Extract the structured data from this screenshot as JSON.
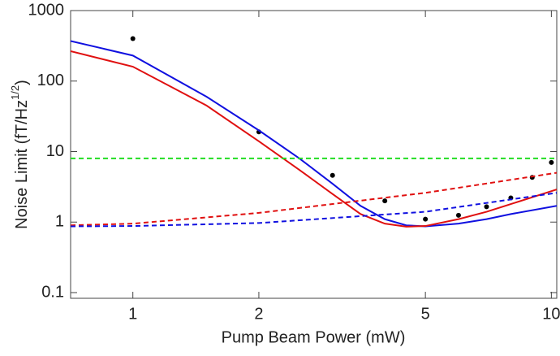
{
  "chart_data": {
    "type": "line",
    "xlabel": "Pump Beam Power (mW)",
    "ylabel": [
      "Noise Limit (fT/Hz",
      "1/2",
      ")"
    ],
    "xscale": "log",
    "yscale": "log",
    "xlim": [
      0.71,
      10.3
    ],
    "ylim": [
      0.083,
      1000
    ],
    "xticks": [
      1,
      2,
      5,
      10
    ],
    "yticks": [
      0.1,
      1,
      10,
      100,
      1000
    ],
    "series": [
      {
        "color": "#000000",
        "marker": true,
        "x": [
          1,
          2,
          3,
          4,
          5,
          6,
          7,
          8,
          9,
          10
        ],
        "values": [
          400,
          19,
          4.6,
          2.0,
          1.1,
          1.25,
          1.65,
          2.2,
          4.3,
          7.0
        ]
      },
      {
        "color": "#1010e0",
        "dashed": false,
        "x": [
          0.71,
          1,
          1.5,
          2,
          2.5,
          3,
          3.5,
          4,
          4.5,
          5,
          6,
          7,
          8,
          10.3
        ],
        "values": [
          370,
          230,
          60,
          20,
          8,
          3.5,
          1.7,
          1.1,
          0.9,
          0.87,
          0.95,
          1.1,
          1.3,
          1.7
        ]
      },
      {
        "color": "#e01010",
        "dashed": false,
        "x": [
          0.71,
          1,
          1.5,
          2,
          2.5,
          3,
          3.5,
          4,
          4.5,
          5,
          6,
          7,
          8,
          10.3
        ],
        "values": [
          265,
          160,
          45,
          14,
          5.5,
          2.5,
          1.3,
          0.95,
          0.86,
          0.88,
          1.1,
          1.4,
          1.8,
          2.9
        ]
      },
      {
        "color": "#e01010",
        "dashed": true,
        "x": [
          0.71,
          1,
          2,
          5,
          10.3
        ],
        "values": [
          0.9,
          0.95,
          1.35,
          2.6,
          5.0
        ]
      },
      {
        "color": "#1010e0",
        "dashed": true,
        "x": [
          0.71,
          1,
          2,
          5,
          10.3
        ],
        "values": [
          0.87,
          0.88,
          0.97,
          1.4,
          2.6
        ]
      },
      {
        "color": "#22dd22",
        "dashed": true,
        "x": [
          0.71,
          10.3
        ],
        "values": [
          8,
          8
        ]
      }
    ]
  }
}
